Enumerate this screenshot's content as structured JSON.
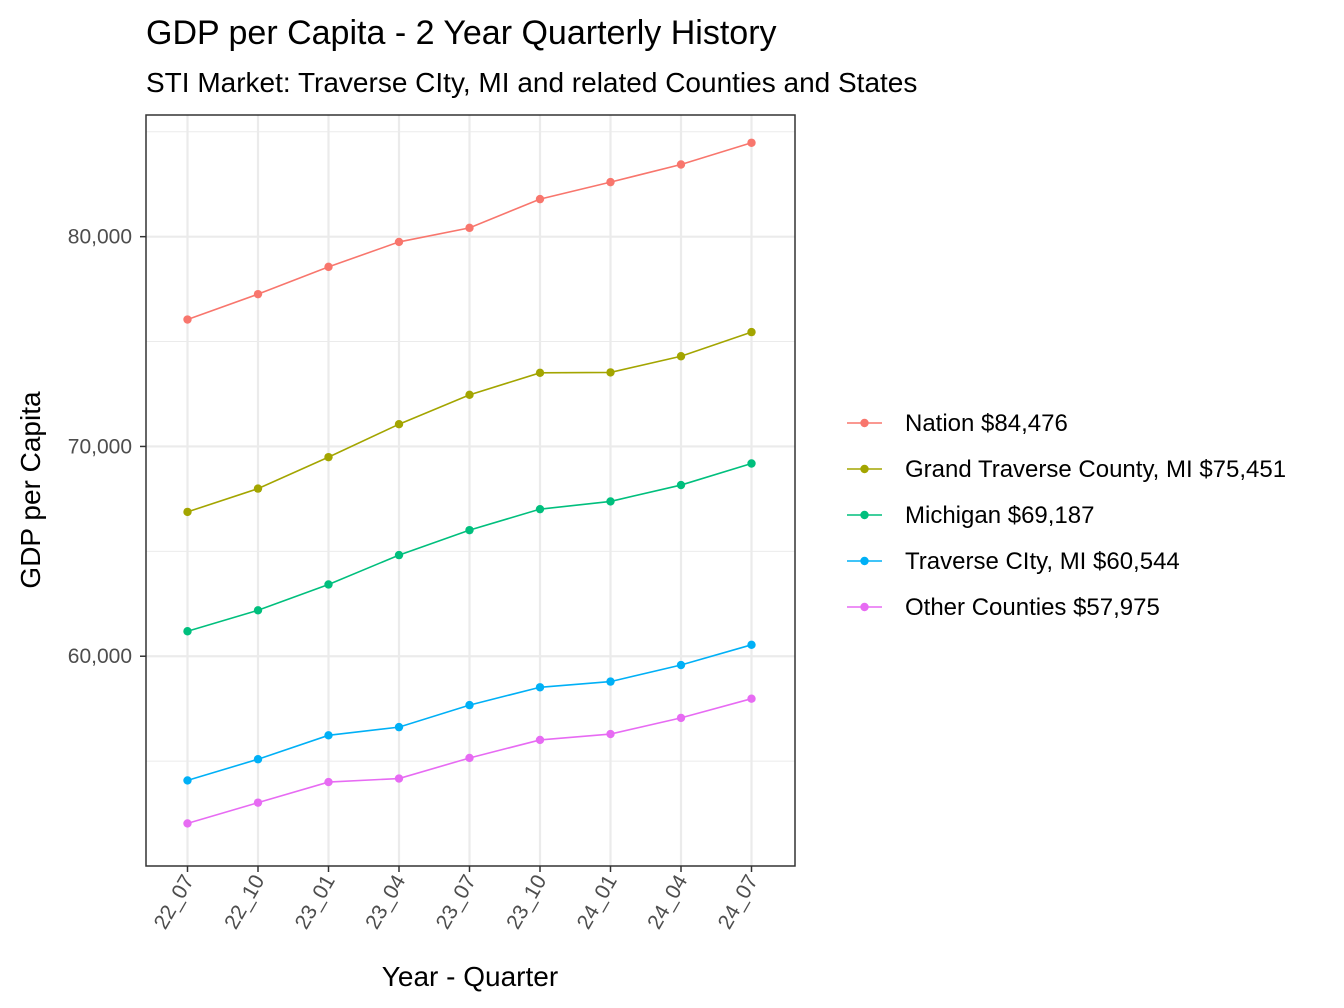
{
  "chart_data": {
    "type": "line",
    "title": "GDP per Capita - 2 Year Quarterly History",
    "subtitle": "STI Market: Traverse CIty, MI and related Counties and States",
    "xlabel": "Year - Quarter",
    "ylabel": "GDP per Capita",
    "categories": [
      "22_07",
      "22_10",
      "23_01",
      "23_04",
      "23_07",
      "23_10",
      "24_01",
      "24_04",
      "24_07"
    ],
    "ylim": [
      50000,
      85800
    ],
    "y_ticks": [
      60000,
      70000,
      80000
    ],
    "y_tick_labels": [
      "60,000",
      "70,000",
      "80,000"
    ],
    "grid": true,
    "legend_position": "right",
    "series": [
      {
        "name": "Nation $84,476",
        "color": "#F8766D",
        "values": [
          76050,
          77260,
          78560,
          79750,
          80420,
          81790,
          82600,
          83440,
          84476
        ]
      },
      {
        "name": "Grand Traverse County, MI $75,451",
        "color": "#A3A500",
        "values": [
          66880,
          67990,
          69490,
          71060,
          72460,
          73510,
          73530,
          74300,
          75451
        ]
      },
      {
        "name": "Michigan $69,187",
        "color": "#00BF7D",
        "values": [
          61190,
          62190,
          63420,
          64820,
          66010,
          67010,
          67380,
          68160,
          69187
        ]
      },
      {
        "name": "Traverse CIty, MI $60,544",
        "color": "#00B0F6",
        "values": [
          54080,
          55090,
          56230,
          56620,
          57670,
          58520,
          58790,
          59580,
          60544
        ]
      },
      {
        "name": "Other Counties $57,975",
        "color": "#E76BF3",
        "values": [
          52030,
          53020,
          54000,
          54170,
          55150,
          56010,
          56290,
          57060,
          57975
        ]
      }
    ]
  }
}
